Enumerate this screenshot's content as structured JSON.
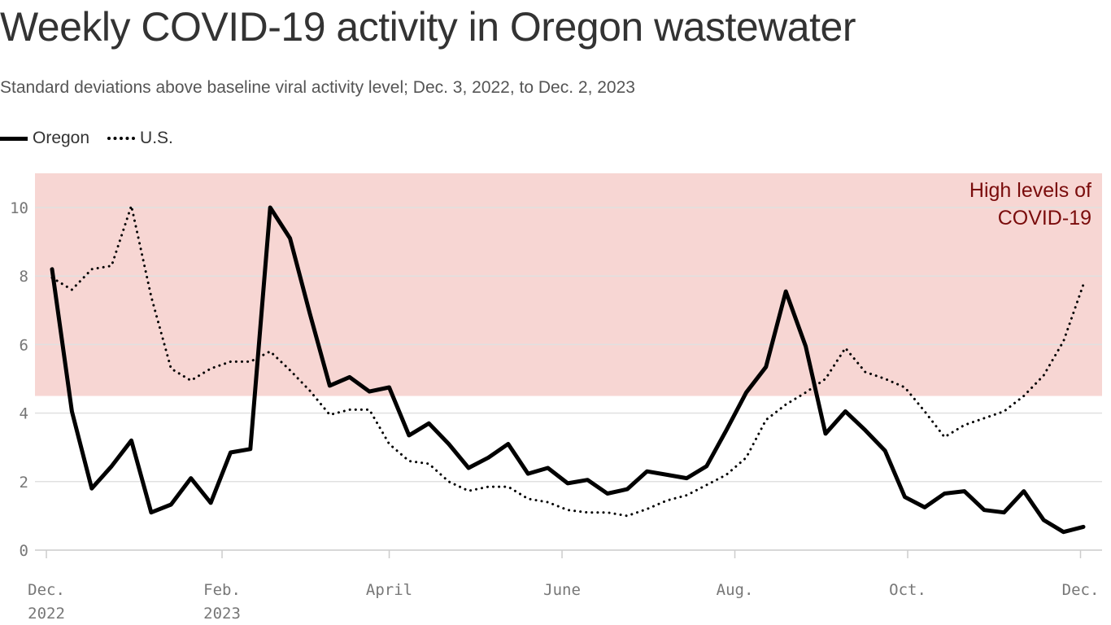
{
  "chart_data": {
    "type": "line",
    "title": "Weekly COVID-19 activity in Oregon wastewater",
    "subtitle": "Standard deviations above baseline viral activity level; Dec. 3, 2022, to Dec. 2, 2023",
    "annotation": "High levels of COVID-19",
    "annotation_lines": [
      "High levels of",
      "COVID-19"
    ],
    "high_threshold": 4.5,
    "ylim": [
      0,
      11
    ],
    "yticks": [
      0,
      2,
      4,
      6,
      8,
      10
    ],
    "grid": true,
    "legend_position": "top-left",
    "xticks": [
      {
        "date": "2022-12-01",
        "label": [
          "Dec.",
          "2022"
        ]
      },
      {
        "date": "2023-02-01",
        "label": [
          "Feb.",
          "2023"
        ]
      },
      {
        "date": "2023-04-01",
        "label": [
          "April",
          ""
        ]
      },
      {
        "date": "2023-06-01",
        "label": [
          "June",
          ""
        ]
      },
      {
        "date": "2023-08-01",
        "label": [
          "Aug.",
          ""
        ]
      },
      {
        "date": "2023-10-01",
        "label": [
          "Oct.",
          ""
        ]
      },
      {
        "date": "2023-12-01",
        "label": [
          "Dec.",
          ""
        ]
      }
    ],
    "x": [
      "2022-12-03",
      "2022-12-10",
      "2022-12-17",
      "2022-12-24",
      "2022-12-31",
      "2023-01-07",
      "2023-01-14",
      "2023-01-21",
      "2023-01-28",
      "2023-02-04",
      "2023-02-11",
      "2023-02-18",
      "2023-02-25",
      "2023-03-04",
      "2023-03-11",
      "2023-03-18",
      "2023-03-25",
      "2023-04-01",
      "2023-04-08",
      "2023-04-15",
      "2023-04-22",
      "2023-04-29",
      "2023-05-06",
      "2023-05-13",
      "2023-05-20",
      "2023-05-27",
      "2023-06-03",
      "2023-06-10",
      "2023-06-17",
      "2023-06-24",
      "2023-07-01",
      "2023-07-08",
      "2023-07-15",
      "2023-07-22",
      "2023-07-29",
      "2023-08-05",
      "2023-08-12",
      "2023-08-19",
      "2023-08-26",
      "2023-09-02",
      "2023-09-09",
      "2023-09-16",
      "2023-09-23",
      "2023-09-30",
      "2023-10-07",
      "2023-10-14",
      "2023-10-21",
      "2023-10-28",
      "2023-11-04",
      "2023-11-11",
      "2023-11-18",
      "2023-11-25",
      "2023-12-02"
    ],
    "series": [
      {
        "name": "Oregon",
        "style": "solid",
        "color": "#000000",
        "values": [
          8.2,
          4.05,
          1.8,
          2.45,
          3.2,
          1.1,
          1.33,
          2.1,
          1.38,
          2.85,
          2.95,
          10.0,
          9.1,
          6.9,
          4.8,
          5.05,
          4.63,
          4.75,
          3.35,
          3.7,
          3.1,
          2.4,
          2.7,
          3.1,
          2.23,
          2.4,
          1.95,
          2.05,
          1.65,
          1.78,
          2.3,
          2.2,
          2.1,
          2.45,
          3.5,
          4.6,
          5.35,
          7.55,
          5.95,
          3.4,
          4.05,
          3.5,
          2.9,
          1.55,
          1.25,
          1.65,
          1.72,
          1.17,
          1.1,
          1.72,
          0.88,
          0.53,
          0.68
        ]
      },
      {
        "name": "U.S.",
        "style": "dotted",
        "color": "#000000",
        "values": [
          7.95,
          7.6,
          8.2,
          8.3,
          10.05,
          7.4,
          5.3,
          4.95,
          5.3,
          5.5,
          5.5,
          5.8,
          5.25,
          4.65,
          3.95,
          4.1,
          4.1,
          3.1,
          2.6,
          2.52,
          2.0,
          1.73,
          1.85,
          1.85,
          1.5,
          1.4,
          1.17,
          1.1,
          1.1,
          1.0,
          1.2,
          1.45,
          1.6,
          1.9,
          2.2,
          2.7,
          3.8,
          4.25,
          4.6,
          5.0,
          5.9,
          5.2,
          5.0,
          4.75,
          4.05,
          3.3,
          3.65,
          3.85,
          4.05,
          4.5,
          5.1,
          6.1,
          7.75
        ]
      }
    ]
  },
  "colors": {
    "high_band": "#f7d6d3",
    "annotation": "#7a0c0c",
    "grid": "#dddddd"
  }
}
